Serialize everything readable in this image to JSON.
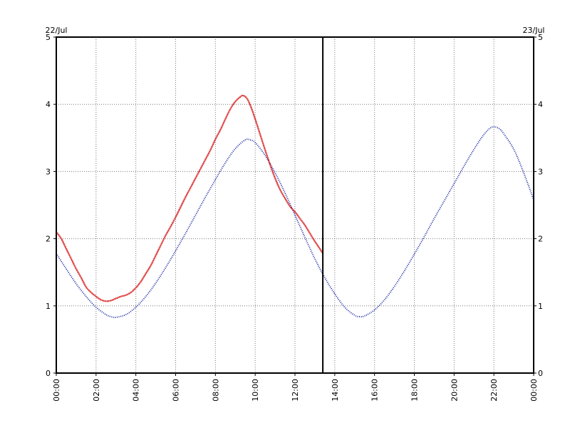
{
  "chart_data": {
    "type": "line",
    "title": "",
    "xlabel": "",
    "ylabel": "",
    "date_start_label": "22/Jul",
    "date_end_label": "23/Jul",
    "x_tick_labels": [
      "00:00",
      "02:00",
      "04:00",
      "06:00",
      "08:00",
      "10:00",
      "12:00",
      "14:00",
      "16:00",
      "18:00",
      "20:00",
      "22:00",
      "00:00"
    ],
    "xlim_hours": [
      0,
      24
    ],
    "y_ticks": [
      0,
      1,
      2,
      3,
      4,
      5
    ],
    "ylim": [
      0,
      5
    ],
    "grid": true,
    "current_time_hour": 13.4,
    "series": [
      {
        "key": "observed",
        "color": "#d40000",
        "style": "solid",
        "x": [
          0.0,
          0.25,
          0.5,
          0.75,
          1.0,
          1.25,
          1.5,
          1.75,
          2.0,
          2.25,
          2.5,
          2.75,
          3.0,
          3.25,
          3.5,
          3.75,
          4.0,
          4.25,
          4.5,
          4.75,
          5.0,
          5.25,
          5.5,
          5.75,
          6.0,
          6.25,
          6.5,
          6.75,
          7.0,
          7.25,
          7.5,
          7.75,
          8.0,
          8.25,
          8.5,
          8.75,
          9.0,
          9.25,
          9.4,
          9.6,
          9.8,
          10.0,
          10.25,
          10.5,
          10.75,
          11.0,
          11.25,
          11.5,
          11.75,
          12.0,
          12.25,
          12.5,
          12.75,
          13.0,
          13.25,
          13.4
        ],
        "y": [
          2.1,
          2.0,
          1.85,
          1.7,
          1.55,
          1.42,
          1.28,
          1.2,
          1.14,
          1.09,
          1.07,
          1.08,
          1.11,
          1.14,
          1.16,
          1.2,
          1.27,
          1.36,
          1.48,
          1.6,
          1.75,
          1.9,
          2.05,
          2.18,
          2.32,
          2.47,
          2.62,
          2.76,
          2.9,
          3.04,
          3.18,
          3.32,
          3.48,
          3.62,
          3.78,
          3.93,
          4.04,
          4.11,
          4.13,
          4.08,
          3.95,
          3.78,
          3.55,
          3.32,
          3.1,
          2.9,
          2.73,
          2.6,
          2.48,
          2.4,
          2.3,
          2.2,
          2.08,
          1.96,
          1.85,
          1.78
        ]
      },
      {
        "key": "predicted",
        "color": "#1020a0",
        "style": "dotted",
        "x": [
          0.0,
          0.5,
          1.0,
          1.5,
          2.0,
          2.5,
          2.75,
          3.0,
          3.5,
          4.0,
          4.5,
          5.0,
          5.5,
          6.0,
          6.5,
          7.0,
          7.5,
          8.0,
          8.5,
          9.0,
          9.5,
          9.75,
          10.0,
          10.5,
          11.0,
          11.5,
          12.0,
          12.5,
          13.0,
          13.5,
          14.0,
          14.5,
          15.0,
          15.25,
          15.5,
          16.0,
          16.5,
          17.0,
          17.5,
          18.0,
          18.5,
          19.0,
          19.5,
          20.0,
          20.5,
          21.0,
          21.5,
          21.9,
          22.25,
          22.5,
          23.0,
          23.5,
          24.0
        ],
        "y": [
          1.78,
          1.55,
          1.33,
          1.14,
          0.98,
          0.87,
          0.84,
          0.83,
          0.87,
          0.98,
          1.14,
          1.34,
          1.57,
          1.82,
          2.08,
          2.35,
          2.62,
          2.88,
          3.13,
          3.34,
          3.47,
          3.47,
          3.43,
          3.24,
          2.98,
          2.68,
          2.35,
          2.02,
          1.7,
          1.42,
          1.18,
          0.98,
          0.86,
          0.84,
          0.85,
          0.94,
          1.09,
          1.29,
          1.52,
          1.77,
          2.03,
          2.3,
          2.56,
          2.82,
          3.08,
          3.33,
          3.55,
          3.66,
          3.64,
          3.56,
          3.33,
          2.98,
          2.58
        ]
      }
    ]
  }
}
